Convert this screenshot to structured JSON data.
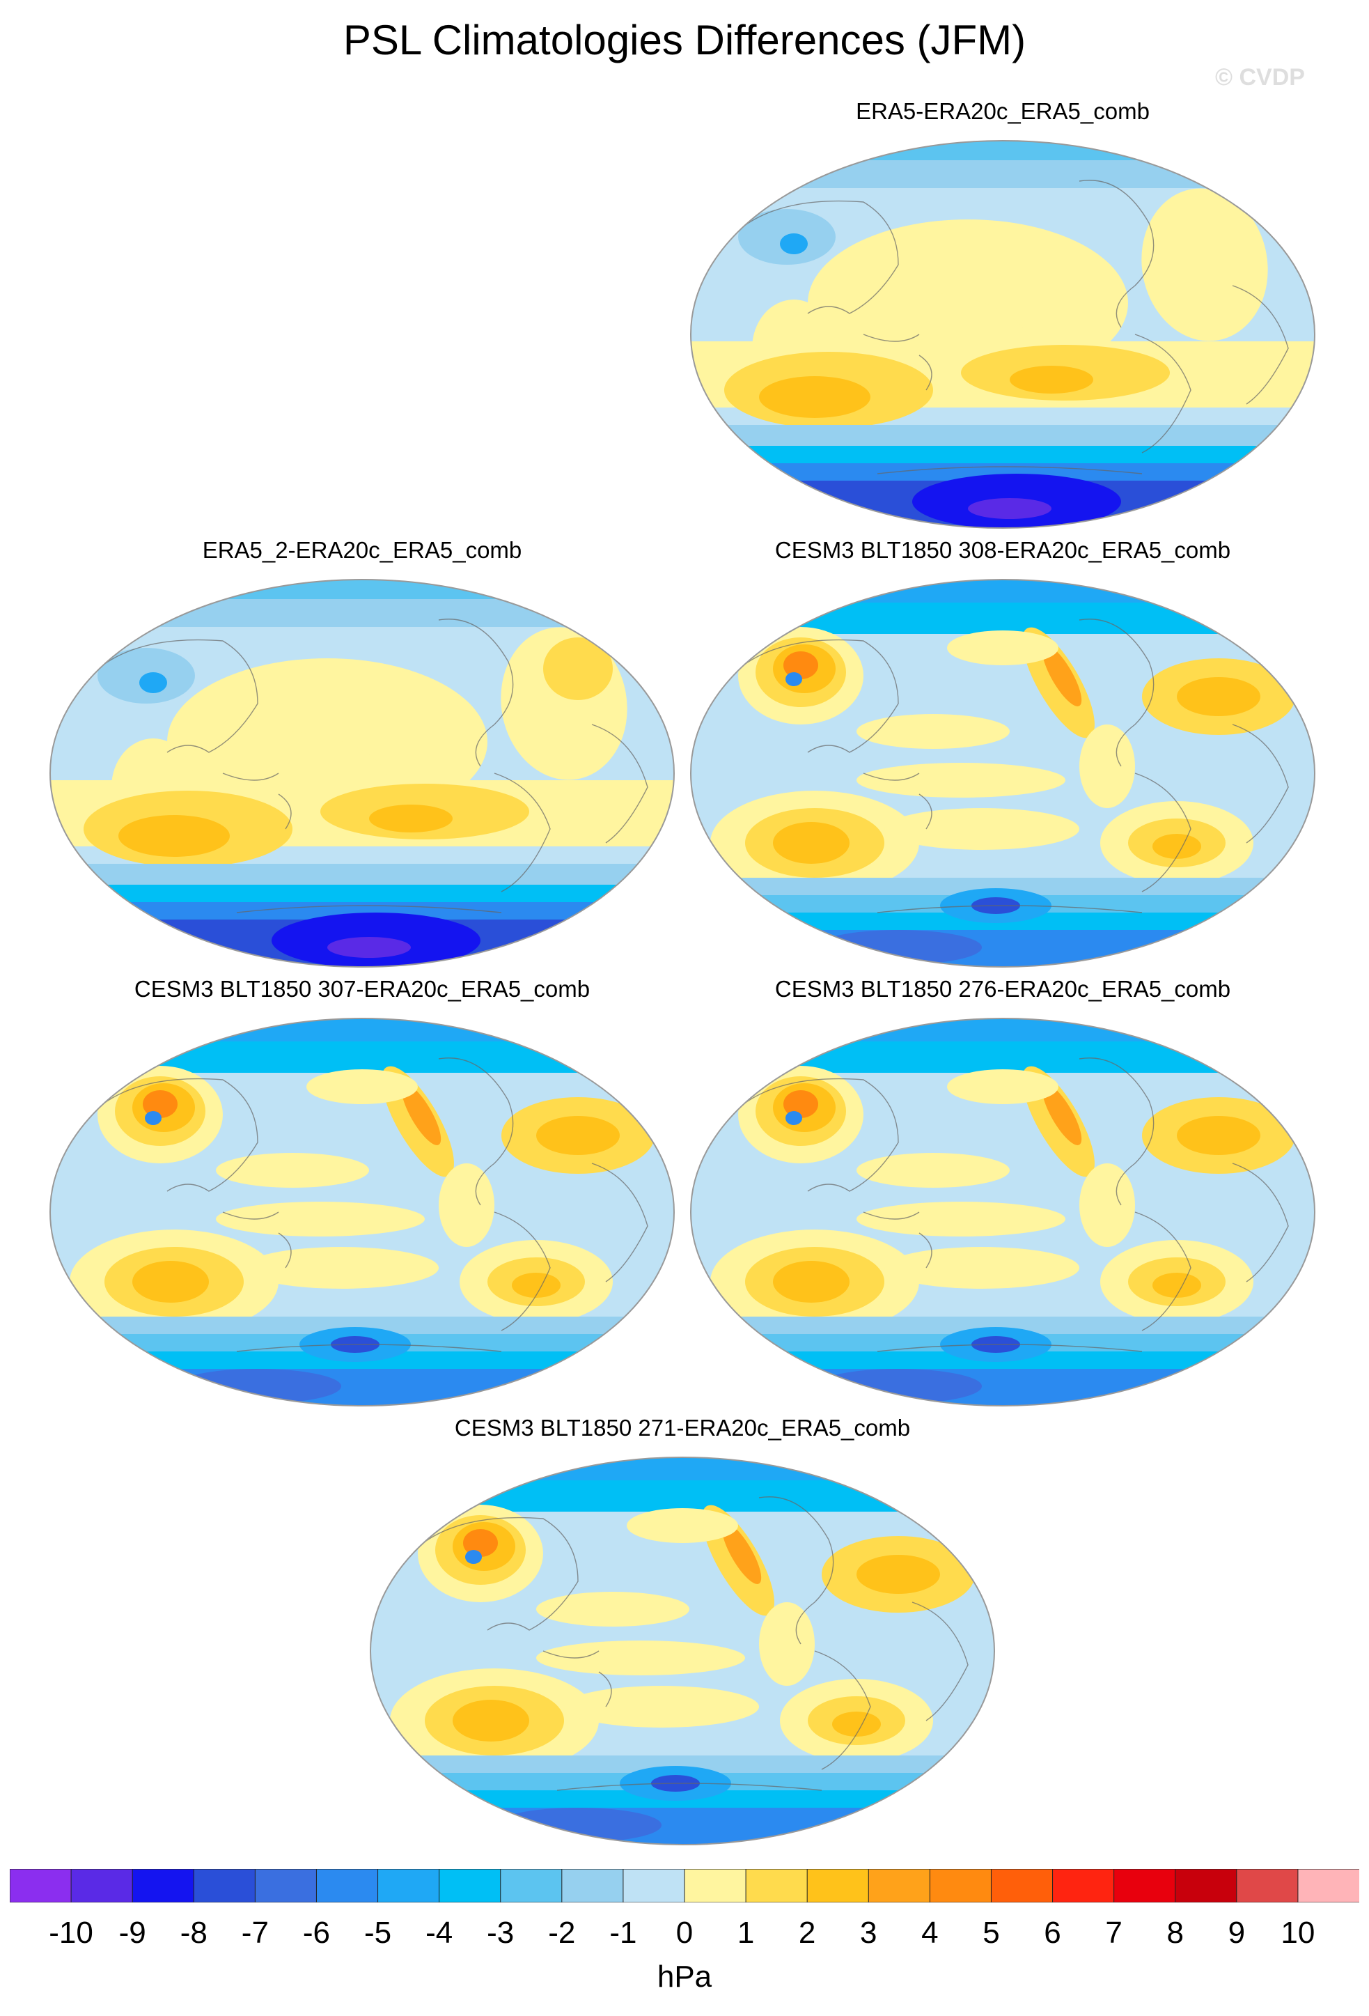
{
  "title": "PSL Climatologies Differences (JFM)",
  "watermark": "© CVDP",
  "panels": [
    {
      "title": "ERA5-ERA20c_ERA5_comb",
      "style": "obs1"
    },
    {
      "title": "ERA5_2-ERA20c_ERA5_comb",
      "style": "obs2"
    },
    {
      "title": "CESM3 BLT1850 308-ERA20c_ERA5_comb",
      "style": "model"
    },
    {
      "title": "CESM3 BLT1850 307-ERA20c_ERA5_comb",
      "style": "model"
    },
    {
      "title": "CESM3 BLT1850 276-ERA20c_ERA5_comb",
      "style": "model"
    },
    {
      "title": "CESM3 BLT1850 271-ERA20c_ERA5_comb",
      "style": "model"
    }
  ],
  "colorbar": {
    "ticks": [
      "-10",
      "-9",
      "-8",
      "-7",
      "-6",
      "-5",
      "-4",
      "-3",
      "-2",
      "-1",
      "0",
      "1",
      "2",
      "3",
      "4",
      "5",
      "6",
      "7",
      "8",
      "9",
      "10"
    ],
    "colors": [
      "#8b2eef",
      "#5a2ae6",
      "#1414f0",
      "#2a4fd8",
      "#3a6fe0",
      "#2b8af0",
      "#1fa8f5",
      "#00bff5",
      "#5cc4f0",
      "#96d0ef",
      "#bfe2f5",
      "#fff59f",
      "#ffdb4d",
      "#ffc21a",
      "#ffa21a",
      "#ff8a10",
      "#ff5f0a",
      "#ff2410",
      "#e8000d",
      "#c8000c",
      "#e04848",
      "#ffb4b8"
    ],
    "units": "hPa"
  }
}
